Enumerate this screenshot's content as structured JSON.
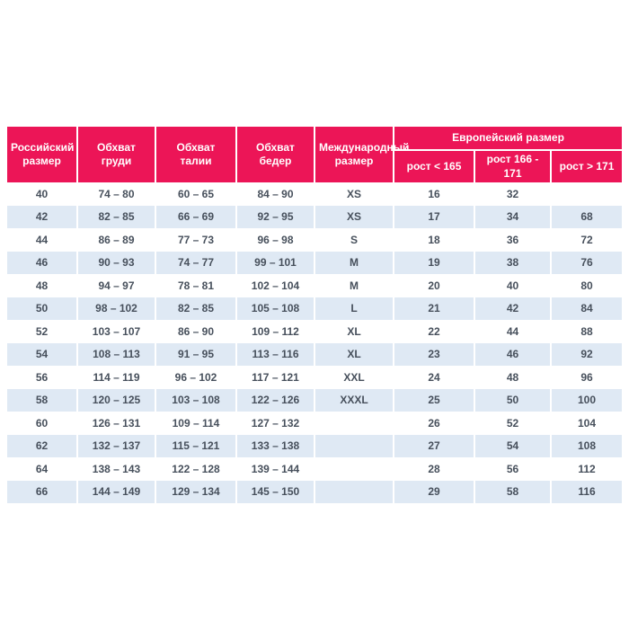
{
  "header": {
    "russian_size": "Российский размер",
    "chest": "Обхват груди",
    "waist": "Обхват талии",
    "hips": "Обхват бедер",
    "international": "Международный размер",
    "european": "Европейский размер",
    "height_cols": [
      "рост < 165",
      "рост 166 - 171",
      "рост > 171"
    ]
  },
  "colors": {
    "header_bg": "#ec1557",
    "header_text": "#ffffff",
    "row_alt_bg": "#dfe9f4",
    "cell_text": "#47505c",
    "page_bg": "#ffffff"
  },
  "chart_data": {
    "type": "table",
    "title": "",
    "columns": [
      "Российский размер",
      "Обхват груди",
      "Обхват талии",
      "Обхват бедер",
      "Международный размер",
      "Европейский размер: рост < 165",
      "Европейский размер: рост 166 - 171",
      "Европейский размер: рост > 171"
    ],
    "rows": [
      [
        "40",
        "74 – 80",
        "60 – 65",
        "84 – 90",
        "XS",
        "16",
        "32",
        ""
      ],
      [
        "42",
        "82 – 85",
        "66 – 69",
        "92 – 95",
        "XS",
        "17",
        "34",
        "68"
      ],
      [
        "44",
        "86 – 89",
        "77 – 73",
        "96 – 98",
        "S",
        "18",
        "36",
        "72"
      ],
      [
        "46",
        "90 – 93",
        "74 – 77",
        "99 – 101",
        "M",
        "19",
        "38",
        "76"
      ],
      [
        "48",
        "94 – 97",
        "78 – 81",
        "102 – 104",
        "M",
        "20",
        "40",
        "80"
      ],
      [
        "50",
        "98 – 102",
        "82 – 85",
        "105 – 108",
        "L",
        "21",
        "42",
        "84"
      ],
      [
        "52",
        "103 – 107",
        "86 – 90",
        "109 – 112",
        "XL",
        "22",
        "44",
        "88"
      ],
      [
        "54",
        "108 – 113",
        "91 – 95",
        "113 – 116",
        "XL",
        "23",
        "46",
        "92"
      ],
      [
        "56",
        "114 – 119",
        "96 – 102",
        "117 – 121",
        "XXL",
        "24",
        "48",
        "96"
      ],
      [
        "58",
        "120 – 125",
        "103 – 108",
        "122 – 126",
        "XXXL",
        "25",
        "50",
        "100"
      ],
      [
        "60",
        "126 – 131",
        "109 – 114",
        "127 – 132",
        "",
        "26",
        "52",
        "104"
      ],
      [
        "62",
        "132 – 137",
        "115 – 121",
        "133 – 138",
        "",
        "27",
        "54",
        "108"
      ],
      [
        "64",
        "138 – 143",
        "122 – 128",
        "139 – 144",
        "",
        "28",
        "56",
        "112"
      ],
      [
        "66",
        "144 – 149",
        "129 – 134",
        "145 – 150",
        "",
        "29",
        "58",
        "116"
      ]
    ]
  }
}
